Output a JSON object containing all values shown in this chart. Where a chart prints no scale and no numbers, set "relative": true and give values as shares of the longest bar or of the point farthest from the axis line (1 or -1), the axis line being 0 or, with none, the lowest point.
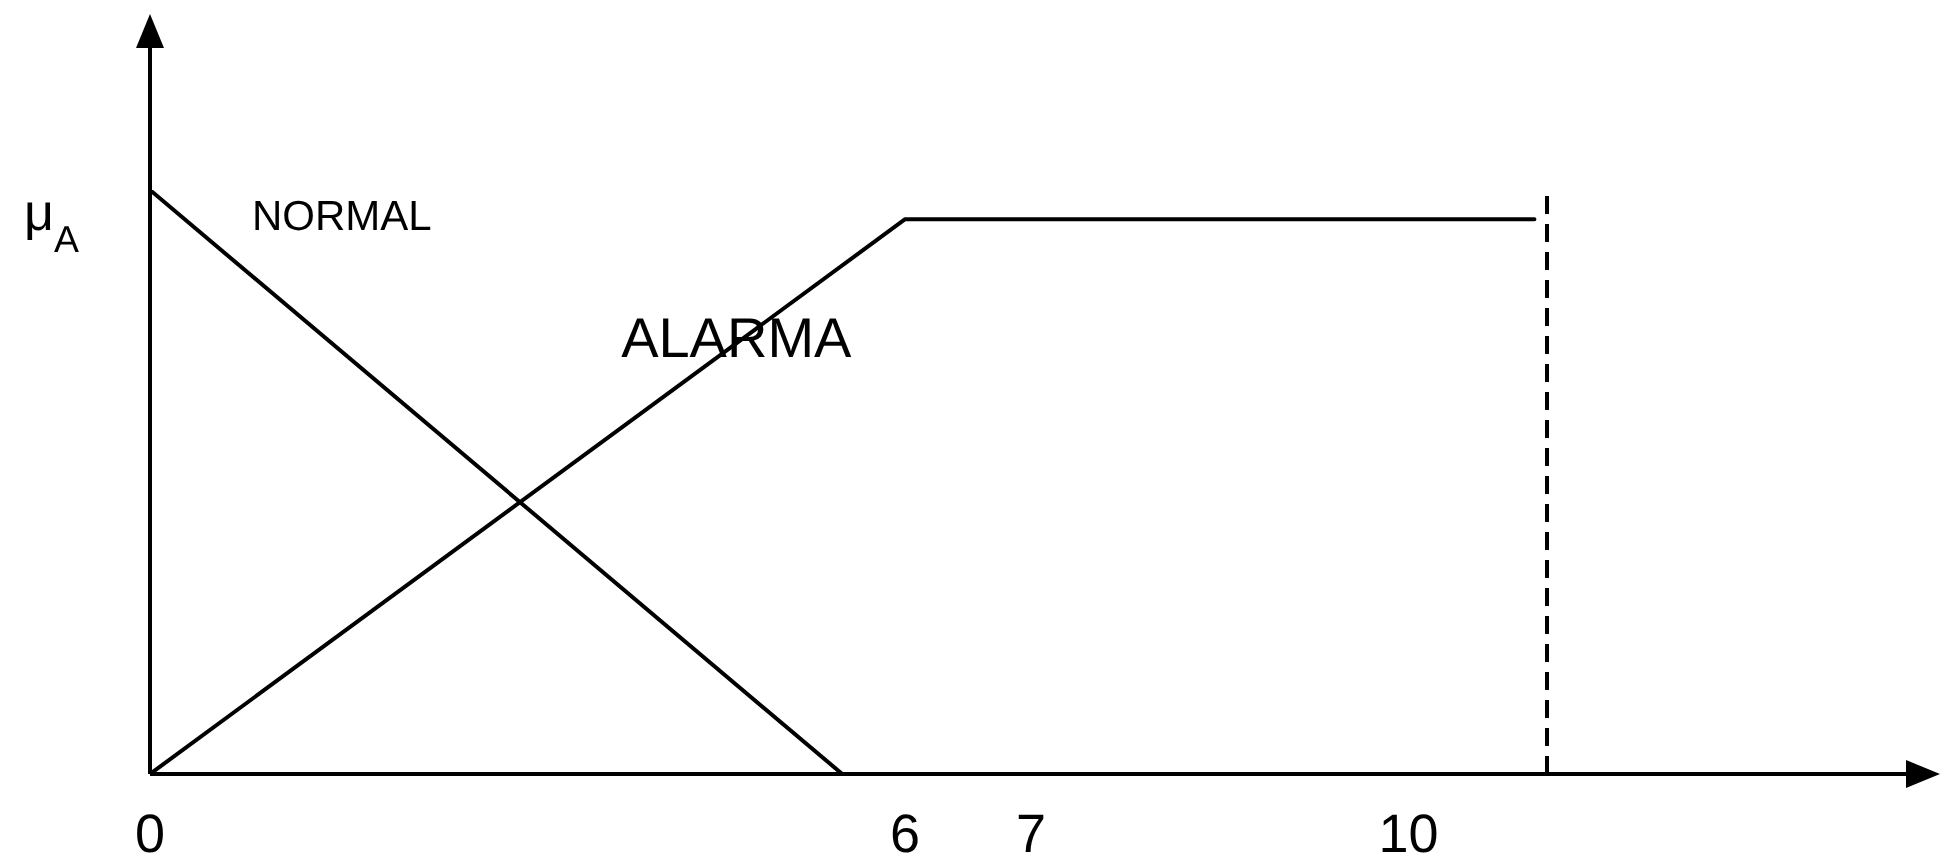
{
  "chart_data": {
    "type": "line",
    "ylabel": "μ$_{A}$",
    "xlim": [
      0,
      14
    ],
    "xticks": [
      0,
      6,
      7,
      10
    ],
    "relative": true,
    "tick_labels": "x",
    "marker": "none",
    "line_style": "solid",
    "series": [
      {
        "name": "NORMAL",
        "color": "#000000",
        "x": [
          0,
          5.5
        ],
        "values": [
          1,
          0
        ]
      },
      {
        "name": "ALARMA",
        "color": "#000000",
        "x": [
          0,
          6,
          11
        ],
        "values": [
          0,
          0.95,
          0.95
        ]
      }
    ],
    "ref_lines": [
      {
        "axis": "x",
        "value": 11.1,
        "line_style": "dashed",
        "color": "#000000"
      }
    ]
  }
}
